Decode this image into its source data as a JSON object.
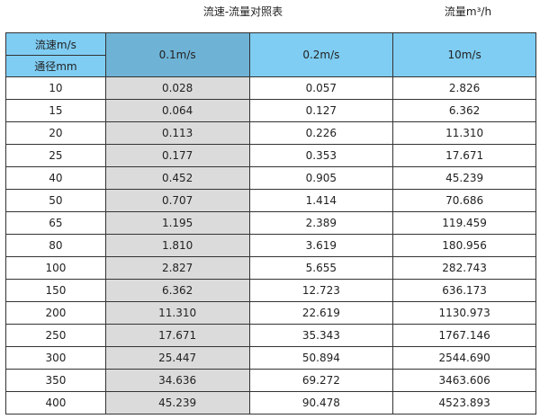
{
  "title": "流速-流量对照表",
  "unit_label": "流量m³/h",
  "colors": {
    "header": "#7fcdf3",
    "header_selected": "#6eb3d6",
    "highlight_column": "#dbdbdb"
  },
  "header": {
    "velocity_label": "流速m/s",
    "diameter_label": "通径mm",
    "columns": [
      "0.1m/s",
      "0.2m/s",
      "10m/s"
    ]
  },
  "rows": [
    [
      "10",
      "0.028",
      "0.057",
      "2.826"
    ],
    [
      "15",
      "0.064",
      "0.127",
      "6.362"
    ],
    [
      "20",
      "0.113",
      "0.226",
      "11.310"
    ],
    [
      "25",
      "0.177",
      "0.353",
      "17.671"
    ],
    [
      "40",
      "0.452",
      "0.905",
      "45.239"
    ],
    [
      "50",
      "0.707",
      "1.414",
      "70.686"
    ],
    [
      "65",
      "1.195",
      "2.389",
      "119.459"
    ],
    [
      "80",
      "1.810",
      "3.619",
      "180.956"
    ],
    [
      "100",
      "2.827",
      "5.655",
      "282.743"
    ],
    [
      "150",
      "6.362",
      "12.723",
      "636.173"
    ],
    [
      "200",
      "11.310",
      "22.619",
      "1130.973"
    ],
    [
      "250",
      "17.671",
      "35.343",
      "1767.146"
    ],
    [
      "300",
      "25.447",
      "50.894",
      "2544.690"
    ],
    [
      "350",
      "34.636",
      "69.272",
      "3463.606"
    ],
    [
      "400",
      "45.239",
      "90.478",
      "4523.893"
    ]
  ]
}
